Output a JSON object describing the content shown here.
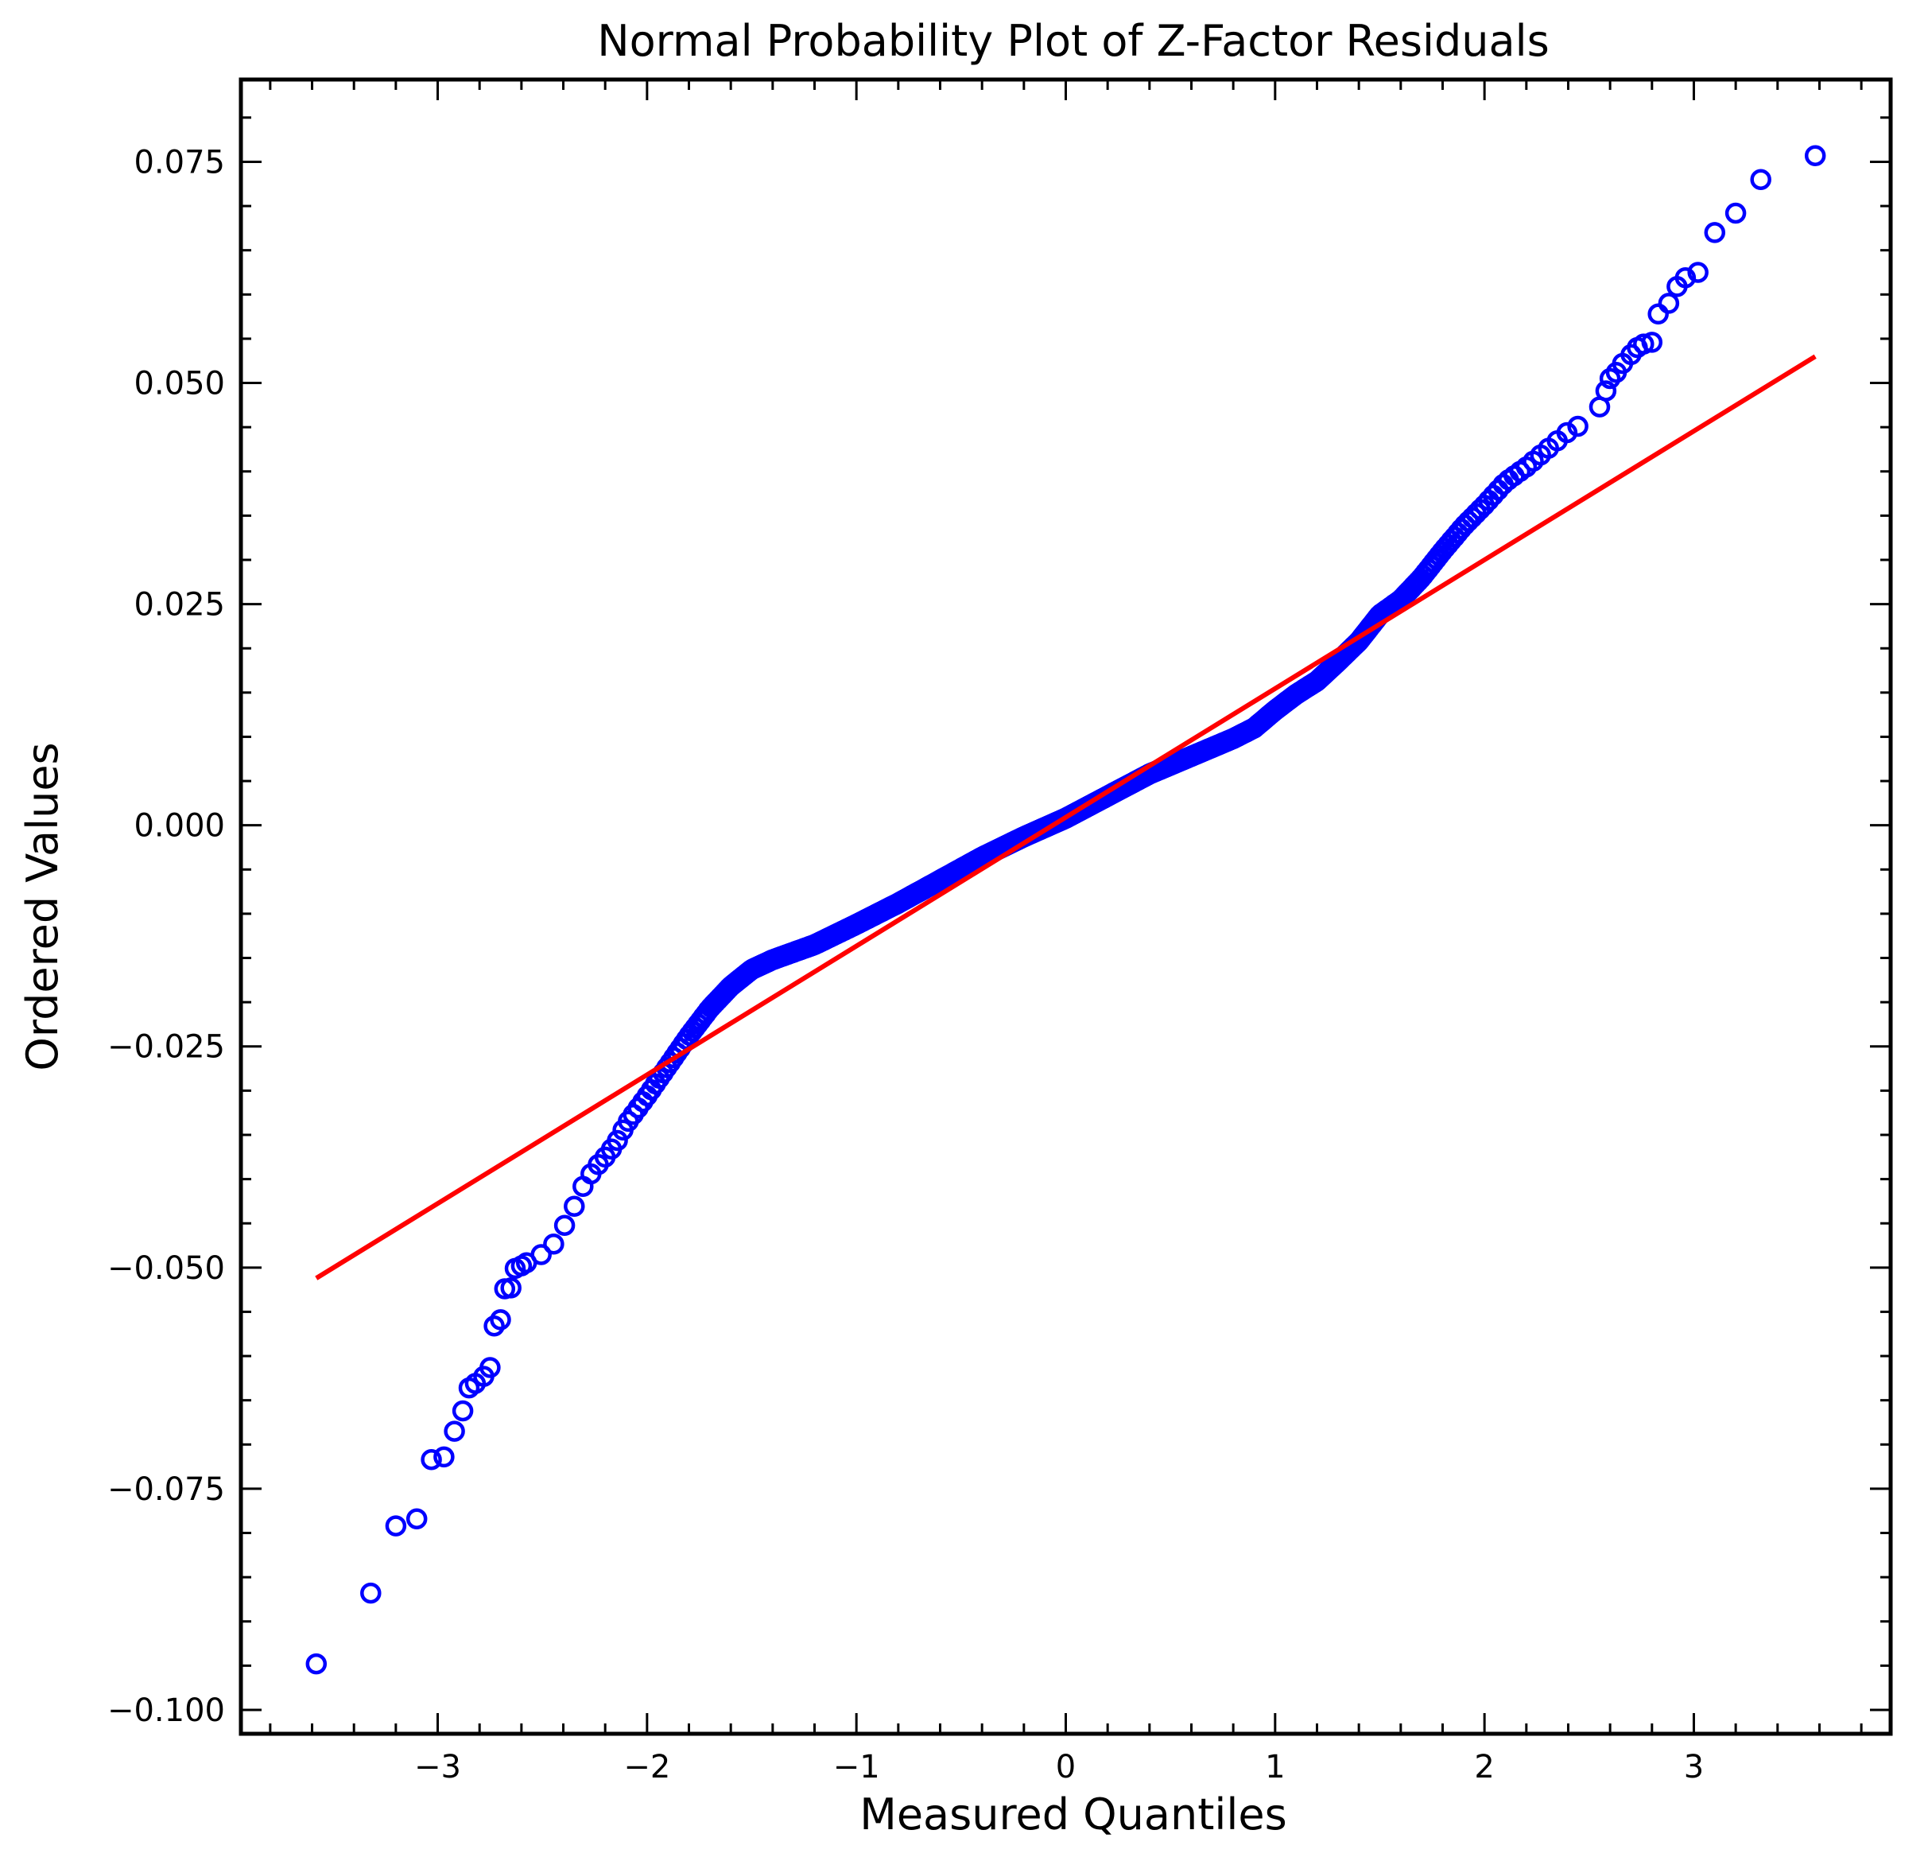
{
  "chart_data": {
    "type": "scatter",
    "title": "Normal Probability Plot of Z-Factor Residuals",
    "xlabel": "Measured Quantiles",
    "ylabel": "Ordered Values",
    "xlim": [
      -3.94,
      3.94
    ],
    "ylim": [
      -0.1027,
      0.0843
    ],
    "xticks": [
      -3,
      -2,
      -1,
      0,
      1,
      2,
      3
    ],
    "xtick_labels": [
      "−3",
      "−2",
      "−1",
      "0",
      "1",
      "2",
      "3"
    ],
    "yticks": [
      -0.1,
      -0.075,
      -0.05,
      -0.025,
      0.0,
      0.025,
      0.05,
      0.075
    ],
    "ytick_labels": [
      "−0.100",
      "−0.075",
      "−0.050",
      "−0.025",
      "0.000",
      "0.025",
      "0.050",
      "0.075"
    ],
    "grid": false,
    "colors": {
      "points": "#0000ff",
      "fit_line": "#ff0000",
      "axes": "#000000"
    },
    "fit_line": {
      "x": [
        -3.58,
        3.58
      ],
      "y": [
        -0.0512,
        0.053
      ]
    },
    "outliers": [
      [
        -3.58,
        -0.0948
      ],
      [
        -3.32,
        -0.0868
      ],
      [
        -3.2,
        -0.0792
      ],
      [
        -3.1,
        -0.0784
      ],
      [
        -3.03,
        -0.0717
      ],
      [
        -2.97,
        -0.0714
      ],
      [
        -2.92,
        -0.0685
      ],
      [
        -2.88,
        -0.0662
      ],
      [
        -2.85,
        -0.0636
      ],
      [
        -2.82,
        -0.0631
      ],
      [
        -2.78,
        -0.0623
      ],
      [
        -2.75,
        -0.0613
      ],
      [
        -2.73,
        -0.0566
      ],
      [
        -2.7,
        -0.0559
      ],
      [
        -2.68,
        -0.0524
      ],
      [
        -2.65,
        -0.0523
      ],
      [
        -2.63,
        -0.0501
      ],
      [
        -2.6,
        -0.0498
      ],
      [
        2.55,
        0.0473
      ],
      [
        2.58,
        0.0491
      ],
      [
        2.6,
        0.0505
      ],
      [
        2.63,
        0.0512
      ],
      [
        2.66,
        0.0522
      ],
      [
        2.7,
        0.0532
      ],
      [
        2.73,
        0.054
      ],
      [
        2.76,
        0.0544
      ],
      [
        2.8,
        0.0546
      ],
      [
        2.83,
        0.0578
      ],
      [
        2.88,
        0.059
      ],
      [
        2.92,
        0.0609
      ],
      [
        2.96,
        0.0619
      ],
      [
        3.02,
        0.0625
      ],
      [
        3.1,
        0.067
      ],
      [
        3.2,
        0.0692
      ],
      [
        3.32,
        0.073
      ],
      [
        3.58,
        0.0757
      ]
    ],
    "curve_knots": [
      [
        -2.58,
        -0.0495
      ],
      [
        -2.52,
        -0.0488
      ],
      [
        -2.45,
        -0.0475
      ],
      [
        -2.4,
        -0.0455
      ],
      [
        -2.35,
        -0.0432
      ],
      [
        -2.3,
        -0.0405
      ],
      [
        -2.25,
        -0.0388
      ],
      [
        -2.2,
        -0.0375
      ],
      [
        -2.15,
        -0.036
      ],
      [
        -2.1,
        -0.0338
      ],
      [
        -2.0,
        -0.0306
      ],
      [
        -1.9,
        -0.0272
      ],
      [
        -1.8,
        -0.0238
      ],
      [
        -1.7,
        -0.0207
      ],
      [
        -1.6,
        -0.0182
      ],
      [
        -1.5,
        -0.0163
      ],
      [
        -1.4,
        -0.0152
      ],
      [
        -1.2,
        -0.0135
      ],
      [
        -1.0,
        -0.0112
      ],
      [
        -0.8,
        -0.0088
      ],
      [
        -0.6,
        -0.0062
      ],
      [
        -0.4,
        -0.0036
      ],
      [
        -0.2,
        -0.0013
      ],
      [
        0.0,
        0.0008
      ],
      [
        0.2,
        0.0033
      ],
      [
        0.4,
        0.0058
      ],
      [
        0.6,
        0.0078
      ],
      [
        0.8,
        0.0098
      ],
      [
        0.9,
        0.011
      ],
      [
        1.0,
        0.013
      ],
      [
        1.1,
        0.0148
      ],
      [
        1.2,
        0.0163
      ],
      [
        1.3,
        0.0185
      ],
      [
        1.4,
        0.0208
      ],
      [
        1.5,
        0.0238
      ],
      [
        1.6,
        0.0255
      ],
      [
        1.7,
        0.028
      ],
      [
        1.8,
        0.031
      ],
      [
        1.9,
        0.0338
      ],
      [
        2.0,
        0.0362
      ],
      [
        2.1,
        0.0388
      ],
      [
        2.2,
        0.0405
      ],
      [
        2.3,
        0.0425
      ],
      [
        2.4,
        0.0445
      ],
      [
        2.5,
        0.0458
      ]
    ],
    "curve_points": 900
  }
}
